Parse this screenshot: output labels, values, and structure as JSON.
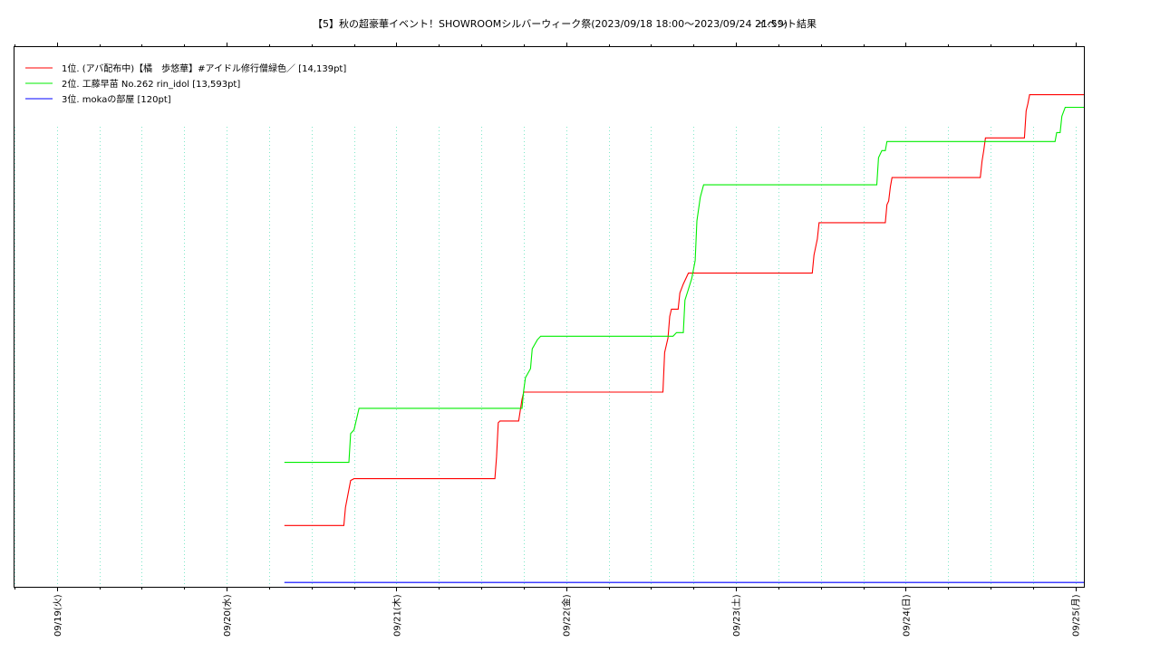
{
  "chart_data": {
    "type": "line",
    "title": "【5】秋の超豪華イベント！SHOWROOMシルバーウィーク祭(2023/09/18 18:00～2023/09/24 21:59)",
    "subtitle": "イベント結果",
    "x_tick_labels": [
      "09/19(火)",
      "09/20(水)",
      "09/21(木)",
      "09/22(金)",
      "09/23(土)",
      "09/24(日)",
      "09/25(月)"
    ],
    "x_tick_days": [
      19,
      20,
      21,
      22,
      23,
      24,
      25
    ],
    "xlim_days": [
      18.75,
      25.05
    ],
    "ylim": [
      0,
      14970
    ],
    "grid": "vertical-dotted",
    "legend_position": "top-left",
    "series": [
      {
        "name": "1位. (アバ配布中)【橘　歩悠華】#アイドル修行僧緑色／ [14,139pt]",
        "color": "#ff0000",
        "points": [
          [
            20.34,
            1700
          ],
          [
            20.69,
            1700
          ],
          [
            20.7,
            2200
          ],
          [
            20.71,
            2450
          ],
          [
            20.73,
            2950
          ],
          [
            20.75,
            3000
          ],
          [
            21.58,
            3000
          ],
          [
            21.59,
            3600
          ],
          [
            21.6,
            4550
          ],
          [
            21.61,
            4600
          ],
          [
            21.72,
            4600
          ],
          [
            21.74,
            5200
          ],
          [
            21.75,
            5400
          ],
          [
            22.57,
            5400
          ],
          [
            22.58,
            6500
          ],
          [
            22.6,
            6900
          ],
          [
            22.61,
            7500
          ],
          [
            22.62,
            7700
          ],
          [
            22.66,
            7700
          ],
          [
            22.67,
            8150
          ],
          [
            22.69,
            8400
          ],
          [
            22.72,
            8700
          ],
          [
            23.45,
            8700
          ],
          [
            23.46,
            9200
          ],
          [
            23.48,
            9650
          ],
          [
            23.49,
            10100
          ],
          [
            23.88,
            10100
          ],
          [
            23.89,
            10600
          ],
          [
            23.9,
            10700
          ],
          [
            23.91,
            11100
          ],
          [
            23.92,
            11350
          ],
          [
            24.44,
            11350
          ],
          [
            24.45,
            11800
          ],
          [
            24.46,
            12100
          ],
          [
            24.47,
            12450
          ],
          [
            24.7,
            12450
          ],
          [
            24.71,
            13200
          ],
          [
            24.72,
            13400
          ],
          [
            24.73,
            13650
          ],
          [
            25.05,
            13650
          ]
        ]
      },
      {
        "name": "2位. 工藤早苗 No.262 rin_idol [13,593pt]",
        "color": "#00ee00",
        "points": [
          [
            20.34,
            3450
          ],
          [
            20.72,
            3450
          ],
          [
            20.73,
            4250
          ],
          [
            20.75,
            4350
          ],
          [
            20.78,
            4950
          ],
          [
            21.74,
            4950
          ],
          [
            21.75,
            5450
          ],
          [
            21.76,
            5800
          ],
          [
            21.79,
            6050
          ],
          [
            21.8,
            6600
          ],
          [
            21.83,
            6850
          ],
          [
            21.85,
            6950
          ],
          [
            22.63,
            6950
          ],
          [
            22.65,
            7050
          ],
          [
            22.69,
            7050
          ],
          [
            22.7,
            7950
          ],
          [
            22.72,
            8250
          ],
          [
            22.74,
            8550
          ],
          [
            22.76,
            9050
          ],
          [
            22.77,
            10150
          ],
          [
            22.79,
            10800
          ],
          [
            22.81,
            11150
          ],
          [
            23.83,
            11150
          ],
          [
            23.84,
            11900
          ],
          [
            23.86,
            12100
          ],
          [
            23.88,
            12100
          ],
          [
            23.89,
            12350
          ],
          [
            24.88,
            12350
          ],
          [
            24.89,
            12600
          ],
          [
            24.91,
            12600
          ],
          [
            24.92,
            13050
          ],
          [
            24.94,
            13300
          ],
          [
            25.05,
            13300
          ]
        ]
      },
      {
        "name": "3位. mokaの部屋 [120pt]",
        "color": "#0000ff",
        "points": [
          [
            20.34,
            120
          ],
          [
            25.05,
            120
          ]
        ]
      }
    ]
  }
}
